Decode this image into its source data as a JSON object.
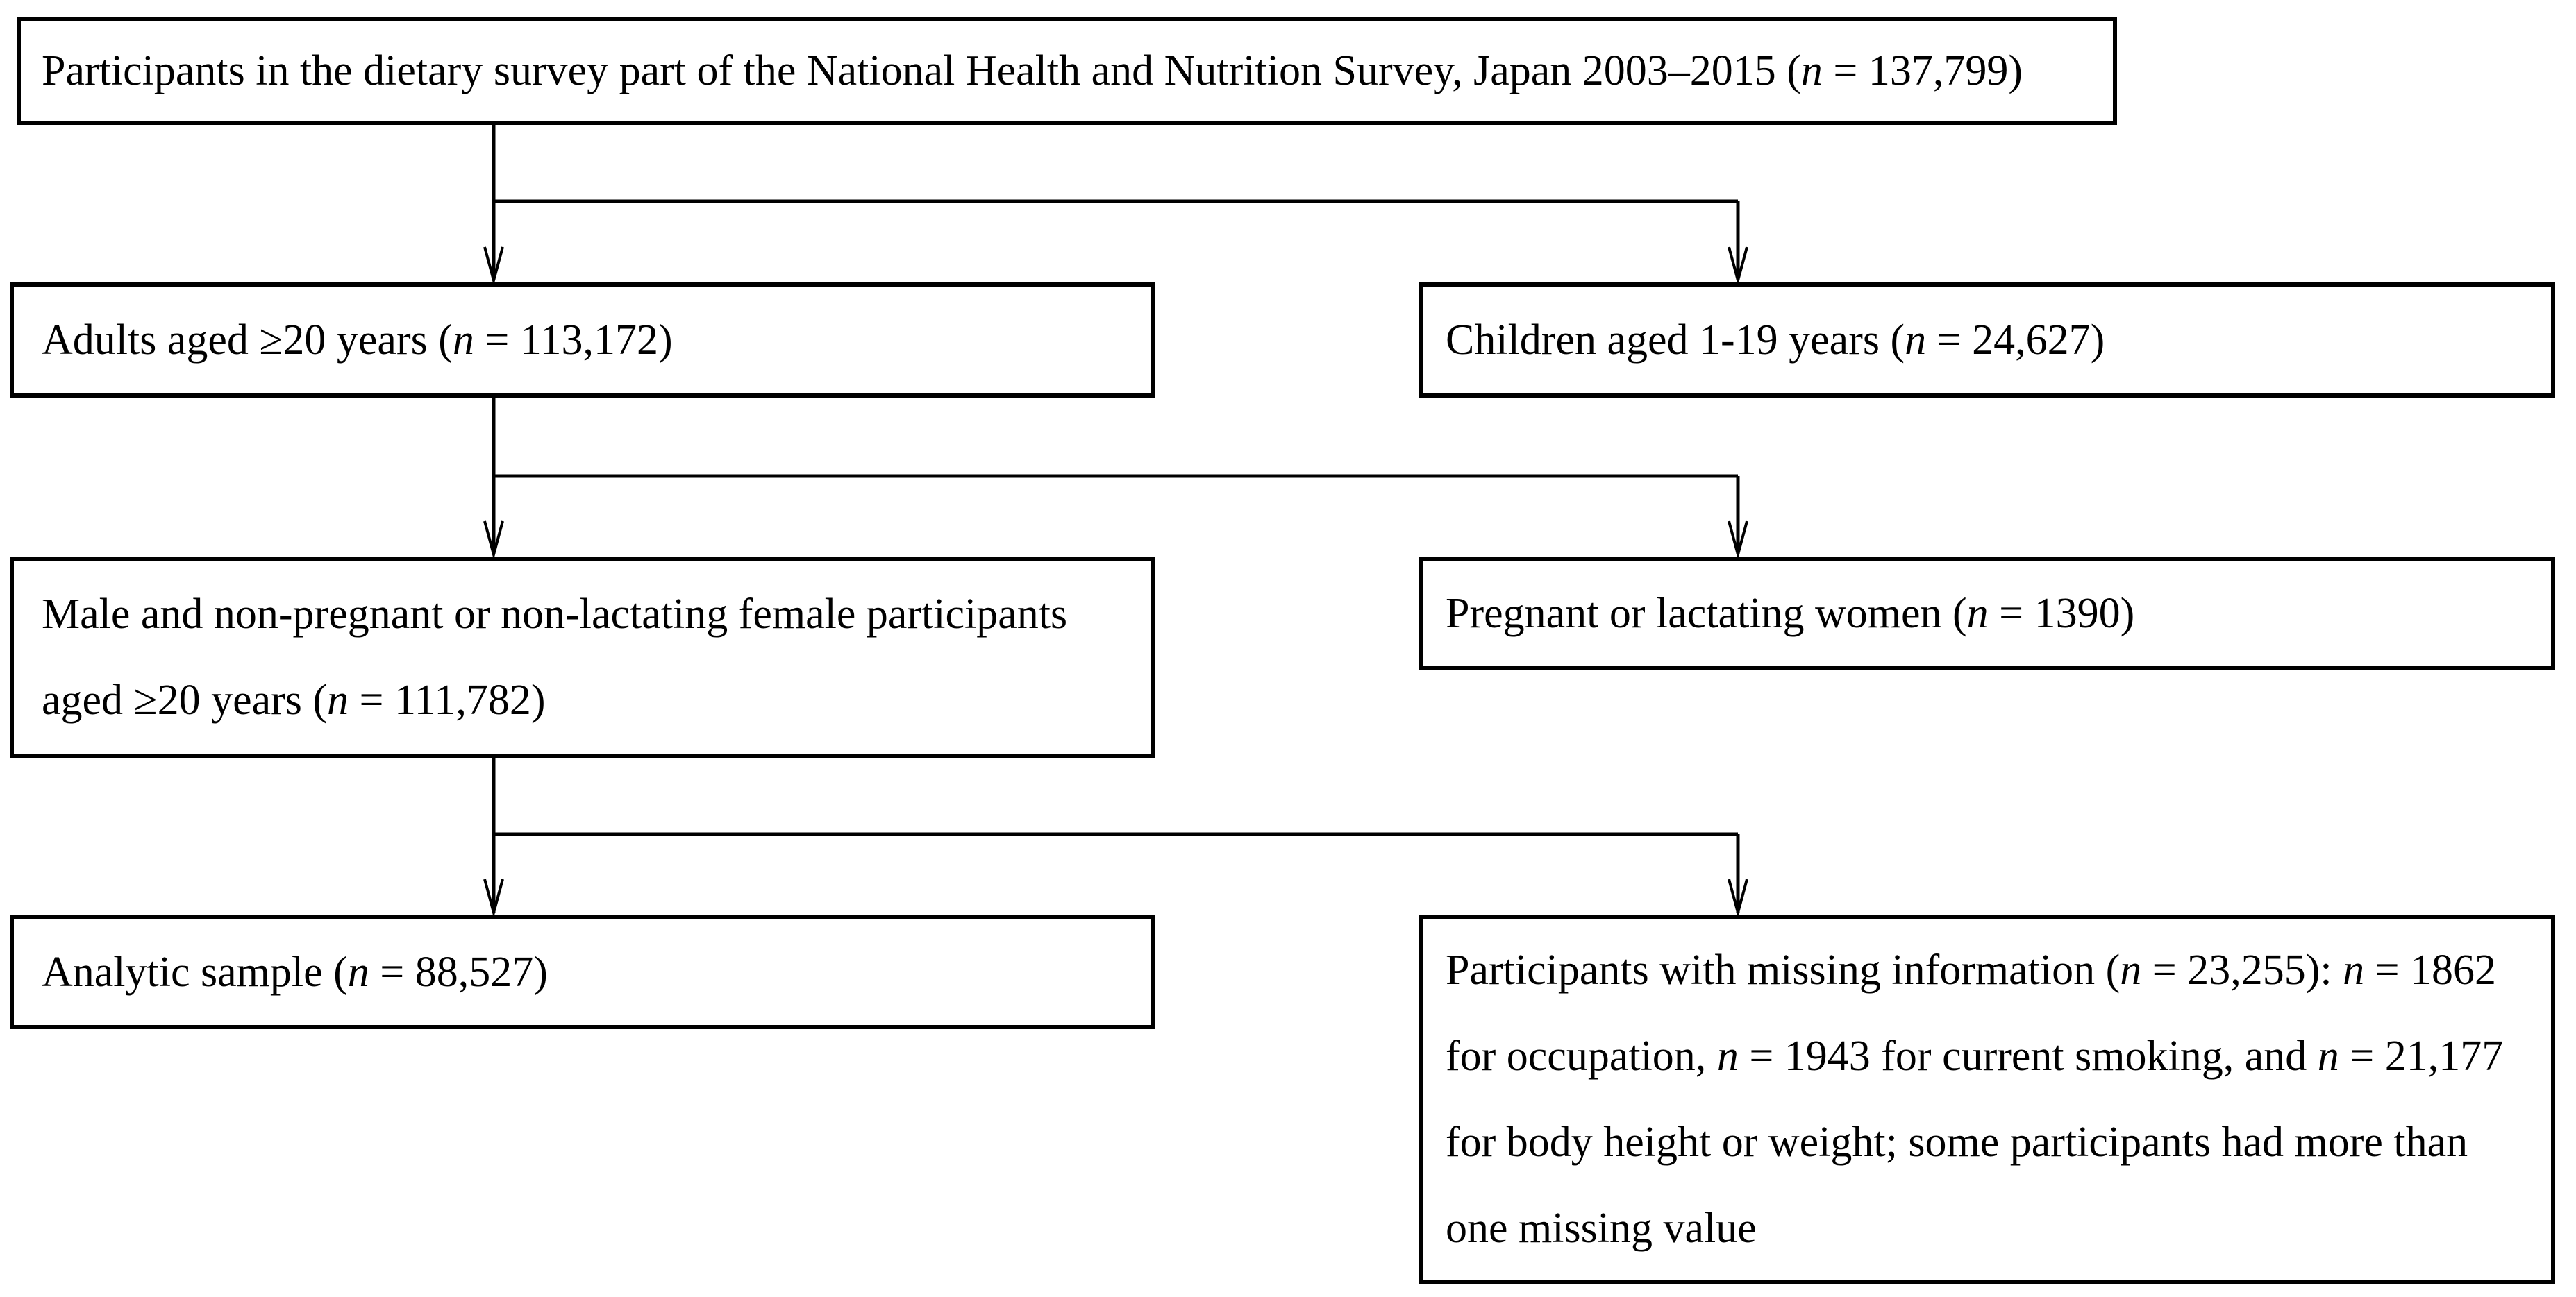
{
  "diagram": {
    "type": "flowchart",
    "background_color": "#ffffff",
    "line_color": "#000000",
    "text_color": "#000000",
    "boxes": {
      "total": {
        "name": "total-participants",
        "segments": [
          {
            "t": "Participants in the dietary survey part of the National Health and Nutrition Survey, Japan 2003–2015 ("
          },
          {
            "t": "n",
            "i": true
          },
          {
            "t": " = 137,799)"
          }
        ]
      },
      "adults": {
        "name": "adults-aged-20-plus",
        "segments": [
          {
            "t": "Adults aged ≥20 years ("
          },
          {
            "t": "n",
            "i": true
          },
          {
            "t": " = 113,172)"
          }
        ]
      },
      "children": {
        "name": "children-excluded",
        "segments": [
          {
            "t": "Children aged 1-19 years ("
          },
          {
            "t": "n",
            "i": true
          },
          {
            "t": " = 24,627)"
          }
        ]
      },
      "eligible": {
        "name": "eligible-participants",
        "segments": [
          {
            "t": "Male and non-pregnant or non-lactating female participants"
          },
          {
            "br": true
          },
          {
            "t": "aged ≥20 years ("
          },
          {
            "t": "n",
            "i": true
          },
          {
            "t": " = 111,782)"
          }
        ]
      },
      "pregnant": {
        "name": "pregnant-lactating-excluded",
        "segments": [
          {
            "t": "Pregnant or lactating women ("
          },
          {
            "t": "n",
            "i": true
          },
          {
            "t": " = 1390)"
          }
        ]
      },
      "analytic": {
        "name": "analytic-sample",
        "segments": [
          {
            "t": "Analytic sample ("
          },
          {
            "t": "n",
            "i": true
          },
          {
            "t": " = 88,527)"
          }
        ]
      },
      "missing": {
        "name": "missing-information-excluded",
        "segments": [
          {
            "t": "Participants with missing information ("
          },
          {
            "t": "n",
            "i": true
          },
          {
            "t": " = 23,255): "
          },
          {
            "t": "n",
            "i": true
          },
          {
            "t": " = 1862"
          },
          {
            "br": true
          },
          {
            "t": "for occupation, "
          },
          {
            "t": "n",
            "i": true
          },
          {
            "t": " = 1943 for current smoking, and "
          },
          {
            "t": "n",
            "i": true
          },
          {
            "t": " = 21,177"
          },
          {
            "br": true
          },
          {
            "t": "for body height or weight; some participants had more than"
          },
          {
            "br": true
          },
          {
            "t": "one missing value"
          }
        ]
      }
    }
  }
}
